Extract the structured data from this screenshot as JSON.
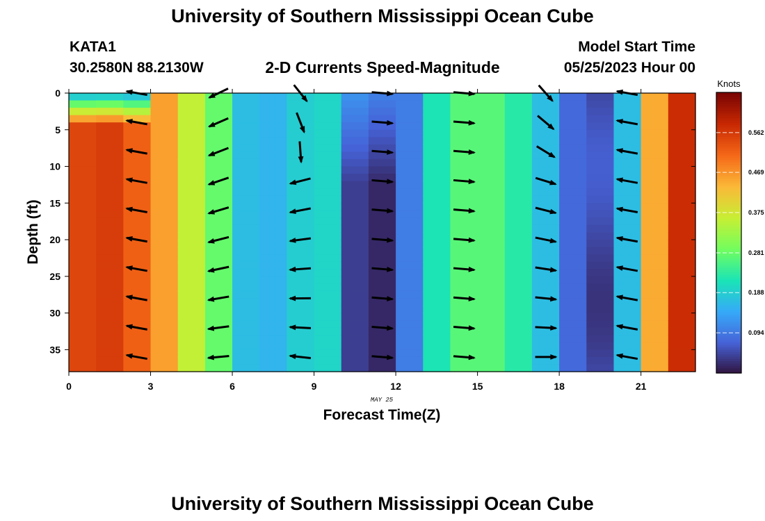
{
  "page": {
    "title": "University of Southern Mississippi Ocean Cube",
    "bottom_title": "University of Southern Mississippi Ocean Cube",
    "station_id": "KATA1",
    "station_coords": "30.2580N  88.2130W",
    "model_start_label": "Model Start Time",
    "model_start_value": "05/25/2023 Hour 00",
    "chart_title": "2-D Currents Speed-Magnitude",
    "date_label": "MAY 25",
    "colorbar_unit": "Knots"
  },
  "colors": {
    "colormap": [
      "#30123b",
      "#4662d7",
      "#36aaf9",
      "#1ae4b6",
      "#72fe5e",
      "#c7ef34",
      "#fbb938",
      "#f56918",
      "#c92903",
      "#7a0403"
    ],
    "arrow": "#000000"
  },
  "chart_data": {
    "type": "heatmap",
    "title": "2-D Currents Speed-Magnitude",
    "xlabel": "Forecast Time(Z)",
    "ylabel": "Depth (ft)",
    "xlim": [
      0,
      23
    ],
    "ylim": [
      0,
      38
    ],
    "y_inverted": true,
    "x_ticks": [
      "0",
      "3",
      "6",
      "9",
      "12",
      "15",
      "18",
      "21"
    ],
    "y_ticks": [
      "0",
      "5",
      "10",
      "15",
      "20",
      "25",
      "30",
      "35"
    ],
    "colorbar": {
      "label": "Knots",
      "range": [
        0,
        0.656
      ],
      "ticks": [
        "0.562",
        "0.469",
        "0.375",
        "0.281",
        "0.188",
        "0.094"
      ],
      "tick_values": [
        0.562,
        0.469,
        0.375,
        0.281,
        0.188,
        0.094
      ]
    },
    "hours": [
      0,
      1,
      2,
      3,
      4,
      5,
      6,
      7,
      8,
      9,
      10,
      11,
      12,
      13,
      14,
      15,
      16,
      17,
      18,
      19,
      20,
      21,
      22
    ],
    "speed_by_hour_knots": [
      0.55,
      0.56,
      0.52,
      0.46,
      0.36,
      0.28,
      0.17,
      0.16,
      0.19,
      0.2,
      0.04,
      0.02,
      0.1,
      0.22,
      0.27,
      0.27,
      0.23,
      0.17,
      0.08,
      0.05,
      0.17,
      0.45,
      0.58
    ],
    "vector_samples": [
      {
        "hour": 2,
        "depths": [
          0,
          4,
          8,
          12,
          16,
          20,
          24,
          28,
          32,
          36
        ],
        "direction": "west"
      },
      {
        "hour": 5,
        "depths": [
          0,
          4,
          8,
          12,
          16,
          20,
          24,
          28,
          32,
          36
        ],
        "direction": "west-southwest"
      },
      {
        "hour": 8,
        "depths": [
          0,
          4,
          8,
          12,
          16,
          20,
          24,
          28,
          32,
          36
        ],
        "direction": "southeast-to-west"
      },
      {
        "hour": 11,
        "depths": [
          0,
          4,
          8,
          12,
          16,
          20,
          24,
          28,
          32,
          36
        ],
        "direction": "east"
      },
      {
        "hour": 14,
        "depths": [
          0,
          4,
          8,
          12,
          16,
          20,
          24,
          28,
          32,
          36
        ],
        "direction": "east"
      },
      {
        "hour": 17,
        "depths": [
          0,
          4,
          8,
          12,
          16,
          20,
          24,
          28,
          32,
          36
        ],
        "direction": "southeast-to-east"
      },
      {
        "hour": 20,
        "depths": [
          0,
          4,
          8,
          12,
          16,
          20,
          24,
          28,
          32,
          36
        ],
        "direction": "west"
      }
    ]
  }
}
